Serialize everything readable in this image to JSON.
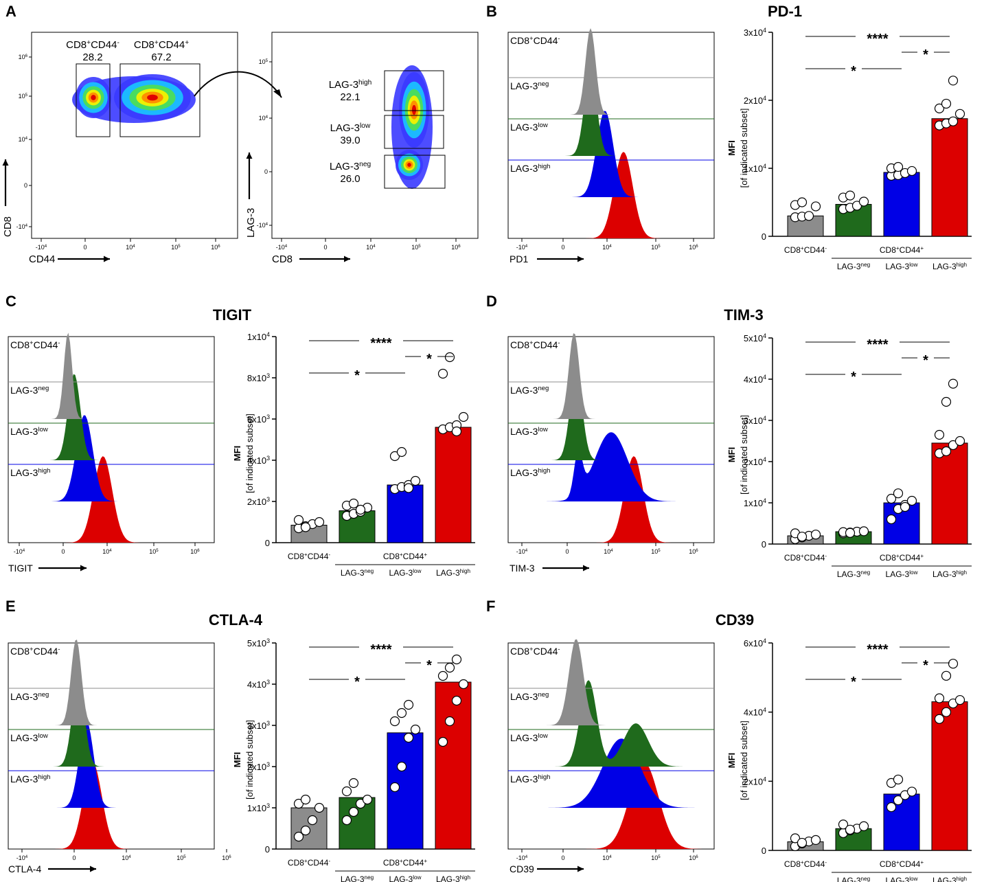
{
  "colors": {
    "grey": "#8c8c8c",
    "green": "#1f6a1c",
    "blue": "#0000e6",
    "red": "#dc0000"
  },
  "labels": {
    "cd8": "CD8",
    "cd44": "CD44",
    "lag3": "LAG-3",
    "lag": "LAG-3",
    "neg": "neg",
    "low": "low",
    "high": "high",
    "cd8cd44": "CD8",
    "plus": "+",
    "minus": "-",
    "cd44p": "CD44",
    "mfi": "MFI",
    "mfi_sub": "[of indicated subset]",
    "g_cd8": "CD8",
    "g_cd44": "CD44"
  },
  "panel_a": {
    "letter": "A",
    "gate1": {
      "label": "CD8",
      "sup1": "+",
      "mid": "CD44",
      "sup2": "-",
      "value": "28.2"
    },
    "gate2": {
      "label": "CD8",
      "sup1": "+",
      "mid": "CD44",
      "sup2": "+",
      "value": "67.2"
    },
    "gate_high": {
      "value": "22.1"
    },
    "gate_low": {
      "value": "39.0"
    },
    "gate_neg": {
      "value": "26.0"
    },
    "plot1_ticks_x": [
      "-10",
      "0",
      "10",
      "10",
      "10"
    ],
    "plot1_ticks_y": [
      "10",
      "10",
      "10",
      "0",
      "-10"
    ]
  },
  "axis_ticks": {
    "x": [
      {
        "b": "-10",
        "e": "4"
      },
      {
        "b": "0",
        "e": ""
      },
      {
        "b": "10",
        "e": "4"
      },
      {
        "b": "10",
        "e": "5"
      },
      {
        "b": "10",
        "e": "6"
      }
    ],
    "y_a1": [
      {
        "b": "10",
        "e": "6"
      },
      {
        "b": "10",
        "e": "5"
      },
      {
        "b": "10",
        "e": "4"
      },
      {
        "b": "0",
        "e": ""
      },
      {
        "b": "-10",
        "e": "4"
      }
    ],
    "y_a2": [
      {
        "b": "10",
        "e": "5"
      },
      {
        "b": "10",
        "e": "4"
      },
      {
        "b": "0",
        "e": ""
      },
      {
        "b": "-10",
        "e": "4"
      }
    ]
  },
  "panels": [
    {
      "letter": "B",
      "title": "PD-1",
      "marker": "PD1",
      "ymax_label": "3",
      "ymax": 30000,
      "ticks": [
        {
          "v": 0,
          "b": "0",
          "e": ""
        },
        {
          "v": 10000,
          "b": "1x10",
          "e": "4"
        },
        {
          "v": 20000,
          "b": "2x10",
          "e": "4"
        },
        {
          "v": 30000,
          "b": "3x10",
          "e": "4"
        }
      ]
    },
    {
      "letter": "C",
      "title": "TIGIT",
      "marker": "TIGIT",
      "ymax": 10000,
      "ticks": [
        {
          "v": 0,
          "b": "0",
          "e": ""
        },
        {
          "v": 2000,
          "b": "2x10",
          "e": "3"
        },
        {
          "v": 4000,
          "b": "4x10",
          "e": "3"
        },
        {
          "v": 6000,
          "b": "6x10",
          "e": "3"
        },
        {
          "v": 8000,
          "b": "8x10",
          "e": "3"
        },
        {
          "v": 10000,
          "b": "1x10",
          "e": "4"
        }
      ]
    },
    {
      "letter": "D",
      "title": "TIM-3",
      "marker": "TIM-3",
      "ymax": 50000,
      "ticks": [
        {
          "v": 0,
          "b": "0",
          "e": ""
        },
        {
          "v": 10000,
          "b": "1x10",
          "e": "4"
        },
        {
          "v": 20000,
          "b": "2x10",
          "e": "4"
        },
        {
          "v": 30000,
          "b": "3x10",
          "e": "4"
        },
        {
          "v": 40000,
          "b": "4x10",
          "e": "4"
        },
        {
          "v": 50000,
          "b": "5x10",
          "e": "4"
        }
      ]
    },
    {
      "letter": "E",
      "title": "CTLA-4",
      "marker": "CTLA-4",
      "ymax": 5000,
      "ticks": [
        {
          "v": 0,
          "b": "0",
          "e": ""
        },
        {
          "v": 1000,
          "b": "1x10",
          "e": "3"
        },
        {
          "v": 2000,
          "b": "2x10",
          "e": "3"
        },
        {
          "v": 3000,
          "b": "3x10",
          "e": "3"
        },
        {
          "v": 4000,
          "b": "4x10",
          "e": "3"
        },
        {
          "v": 5000,
          "b": "5x10",
          "e": "3"
        }
      ]
    },
    {
      "letter": "F",
      "title": "CD39",
      "marker": "CD39",
      "ymax": 60000,
      "ticks": [
        {
          "v": 0,
          "b": "0",
          "e": ""
        },
        {
          "v": 20000,
          "b": "2x10",
          "e": "4"
        },
        {
          "v": 40000,
          "b": "4x10",
          "e": "4"
        },
        {
          "v": 60000,
          "b": "6x10",
          "e": "4"
        }
      ]
    }
  ],
  "sig": {
    "s4": "****",
    "s1": "*"
  },
  "chart_data": [
    {
      "type": "bar",
      "title": "PD-1",
      "ylabel": "MFI [of indicated subset]",
      "ylim": [
        0,
        30000
      ],
      "categories": [
        "CD8+CD44-",
        "LAG-3neg",
        "LAG-3low",
        "LAG-3high"
      ],
      "values": [
        3000,
        4700,
        9400,
        17300
      ],
      "points": [
        [
          2800,
          2900,
          3000,
          4400,
          4600,
          5000
        ],
        [
          4000,
          4200,
          4500,
          5100,
          5700,
          6000
        ],
        [
          8900,
          9000,
          9300,
          9600,
          10000,
          10200
        ],
        [
          16300,
          16600,
          16900,
          18000,
          18800,
          19500,
          22900
        ]
      ],
      "significance": [
        [
          "CD8+CD44-",
          "LAG-3high",
          "****"
        ],
        [
          "LAG-3low",
          "LAG-3high",
          "*"
        ],
        [
          "CD8+CD44-",
          "LAG-3low",
          "*"
        ]
      ]
    },
    {
      "type": "bar",
      "title": "TIGIT",
      "ylabel": "MFI [of indicated subset]",
      "ylim": [
        0,
        10000
      ],
      "categories": [
        "CD8+CD44-",
        "LAG-3neg",
        "LAG-3low",
        "LAG-3high"
      ],
      "values": [
        850,
        1550,
        2800,
        5600
      ],
      "points": [
        [
          700,
          800,
          900,
          1000,
          1100,
          750
        ],
        [
          1300,
          1400,
          1500,
          1700,
          1800,
          1900,
          1600
        ],
        [
          2600,
          2700,
          2800,
          3000,
          4200,
          4400,
          2650
        ],
        [
          5500,
          5600,
          5700,
          6100,
          8200,
          9000,
          5400
        ]
      ],
      "significance": [
        [
          "CD8+CD44-",
          "LAG-3high",
          "****"
        ],
        [
          "LAG-3low",
          "LAG-3high",
          "*"
        ],
        [
          "CD8+CD44-",
          "LAG-3low",
          "*"
        ]
      ]
    },
    {
      "type": "bar",
      "title": "TIM-3",
      "ylabel": "MFI [of indicated subset]",
      "ylim": [
        0,
        50000
      ],
      "categories": [
        "CD8+CD44-",
        "LAG-3neg",
        "LAG-3low",
        "LAG-3high"
      ],
      "values": [
        2000,
        3000,
        10000,
        24500
      ],
      "points": [
        [
          1200,
          1600,
          2000,
          2300,
          2600,
          1800
        ],
        [
          2600,
          2800,
          3000,
          3100,
          2900,
          2700
        ],
        [
          6000,
          8500,
          9500,
          10500,
          11000,
          12300,
          9000
        ],
        [
          22000,
          22500,
          24000,
          25000,
          26500,
          34500,
          38900
        ]
      ],
      "significance": [
        [
          "CD8+CD44-",
          "LAG-3high",
          "****"
        ],
        [
          "LAG-3low",
          "LAG-3high",
          "*"
        ],
        [
          "CD8+CD44-",
          "LAG-3low",
          "*"
        ]
      ]
    },
    {
      "type": "bar",
      "title": "CTLA-4",
      "ylabel": "MFI [of indicated subset]",
      "ylim": [
        0,
        5000
      ],
      "categories": [
        "CD8+CD44-",
        "LAG-3neg",
        "LAG-3low",
        "LAG-3high"
      ],
      "values": [
        1000,
        1250,
        2820,
        4050
      ],
      "points": [
        [
          300,
          450,
          700,
          1000,
          1100,
          1200
        ],
        [
          700,
          900,
          1100,
          1200,
          1400,
          1600
        ],
        [
          1500,
          2000,
          2700,
          2900,
          3100,
          3300,
          3500
        ],
        [
          2600,
          3100,
          3600,
          4000,
          4200,
          4400,
          4600
        ]
      ],
      "significance": [
        [
          "CD8+CD44-",
          "LAG-3high",
          "****"
        ],
        [
          "LAG-3low",
          "LAG-3high",
          "*"
        ],
        [
          "CD8+CD44-",
          "LAG-3low",
          "*"
        ]
      ]
    },
    {
      "type": "bar",
      "title": "CD39",
      "ylabel": "MFI [of indicated subset]",
      "ylim": [
        0,
        60000
      ],
      "categories": [
        "CD8+CD44-",
        "LAG-3neg",
        "LAG-3low",
        "LAG-3high"
      ],
      "values": [
        2500,
        6300,
        16300,
        43000
      ],
      "points": [
        [
          1200,
          2000,
          2600,
          3000,
          3500,
          2200
        ],
        [
          5000,
          5800,
          6300,
          7000,
          7500,
          6000
        ],
        [
          12500,
          14500,
          16000,
          17000,
          19500,
          20500
        ],
        [
          38000,
          40000,
          42500,
          43500,
          44000,
          50500,
          54000
        ]
      ],
      "significance": [
        [
          "CD8+CD44-",
          "LAG-3high",
          "****"
        ],
        [
          "LAG-3low",
          "LAG-3high",
          "*"
        ],
        [
          "CD8+CD44-",
          "LAG-3low",
          "*"
        ]
      ]
    }
  ]
}
